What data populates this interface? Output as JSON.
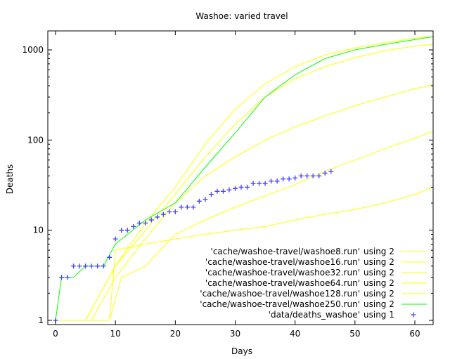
{
  "chart_data": {
    "type": "line",
    "title": "Washoe: varied travel",
    "xlabel": "Days",
    "ylabel": "Deaths",
    "xlim": [
      -1,
      63
    ],
    "ylim": [
      1,
      1500
    ],
    "yscale": "log",
    "xticks": [
      0,
      10,
      20,
      30,
      40,
      50,
      60
    ],
    "yticks": [
      1,
      10,
      100,
      1000
    ],
    "legend_placement": "bottom-right",
    "series": [
      {
        "name": "'cache/washoe-travel/washoe8.run'   using 2",
        "color": "#ffff00",
        "style": "line",
        "x": [
          0,
          9,
          10,
          15,
          20,
          25,
          30,
          35,
          40,
          45,
          50,
          55,
          60,
          63
        ],
        "y": [
          1,
          1,
          6,
          7,
          8,
          9,
          10,
          11,
          13,
          15,
          17,
          20,
          25,
          30
        ]
      },
      {
        "name": "'cache/washoe-travel/washoe16.run'  using 2",
        "color": "#ffff00",
        "style": "line",
        "x": [
          0,
          9,
          11,
          15,
          20,
          25,
          30,
          35,
          40,
          45,
          50,
          55,
          60,
          63
        ],
        "y": [
          1,
          1,
          3,
          4,
          9,
          13,
          18,
          24,
          32,
          45,
          60,
          80,
          105,
          125
        ]
      },
      {
        "name": "'cache/washoe-travel/washoe32.run'  using 2",
        "color": "#ffff00",
        "style": "line",
        "x": [
          0,
          6,
          10,
          15,
          20,
          25,
          30,
          35,
          40,
          45,
          50,
          55,
          60,
          63
        ],
        "y": [
          1,
          1,
          3,
          8,
          20,
          40,
          65,
          100,
          140,
          185,
          240,
          300,
          370,
          410
        ]
      },
      {
        "name": "'cache/washoe-travel/washoe64.run'  using 2",
        "color": "#ffff00",
        "style": "line",
        "x": [
          0,
          5,
          10,
          15,
          20,
          25,
          30,
          35,
          40,
          45,
          50,
          55,
          60,
          63
        ],
        "y": [
          1,
          1,
          4,
          10,
          25,
          65,
          150,
          300,
          480,
          650,
          820,
          980,
          1100,
          1150
        ]
      },
      {
        "name": "'cache/washoe-travel/washoe128.run' using 2",
        "color": "#ffff00",
        "style": "line",
        "x": [
          0,
          5,
          10,
          15,
          20,
          25,
          30,
          35,
          40,
          45,
          50,
          55,
          60,
          63
        ],
        "y": [
          1,
          1,
          4,
          12,
          30,
          90,
          220,
          420,
          650,
          880,
          1050,
          1200,
          1350,
          1400
        ]
      },
      {
        "name": "'cache/washoe-travel/washoe250.run' using 2",
        "color": "#00ff00",
        "style": "line",
        "x": [
          0,
          1,
          2,
          3,
          5,
          8,
          10,
          15,
          20,
          25,
          30,
          35,
          40,
          45,
          50,
          55,
          60,
          63
        ],
        "y": [
          1,
          3,
          3,
          3,
          4,
          4,
          7,
          13,
          20,
          50,
          120,
          300,
          530,
          800,
          1000,
          1150,
          1300,
          1400
        ]
      },
      {
        "name": "'data/deaths_washoe'                 using 1",
        "color": "#4040ff",
        "style": "points",
        "x": [
          0,
          1,
          2,
          3,
          4,
          5,
          6,
          7,
          8,
          9,
          10,
          11,
          12,
          13,
          14,
          15,
          16,
          17,
          18,
          19,
          20,
          21,
          22,
          23,
          24,
          25,
          26,
          27,
          28,
          29,
          30,
          31,
          32,
          33,
          34,
          35,
          36,
          37,
          38,
          39,
          40,
          41,
          42,
          43,
          44,
          45,
          46
        ],
        "y": [
          1,
          3,
          3,
          4,
          4,
          4,
          4,
          4,
          4,
          5,
          8,
          10,
          10,
          11,
          12,
          12,
          13,
          14,
          15,
          16,
          16,
          18,
          18,
          18,
          21,
          22,
          25,
          27,
          27,
          28,
          29,
          30,
          30,
          33,
          33,
          33,
          35,
          35,
          37,
          37,
          38,
          40,
          40,
          40,
          40,
          43,
          45
        ]
      }
    ],
    "legend": [
      {
        "file": "'cache/washoe-travel/washoe8.run'",
        "using": "using 2"
      },
      {
        "file": "'cache/washoe-travel/washoe16.run'",
        "using": "using 2"
      },
      {
        "file": "'cache/washoe-travel/washoe32.run'",
        "using": "using 2"
      },
      {
        "file": "'cache/washoe-travel/washoe64.run'",
        "using": "using 2"
      },
      {
        "file": "'cache/washoe-travel/washoe128.run'",
        "using": "using 2"
      },
      {
        "file": "'cache/washoe-travel/washoe250.run'",
        "using": "using 2"
      },
      {
        "file": "'data/deaths_washoe'",
        "using": "using 1"
      }
    ],
    "grid": false
  }
}
